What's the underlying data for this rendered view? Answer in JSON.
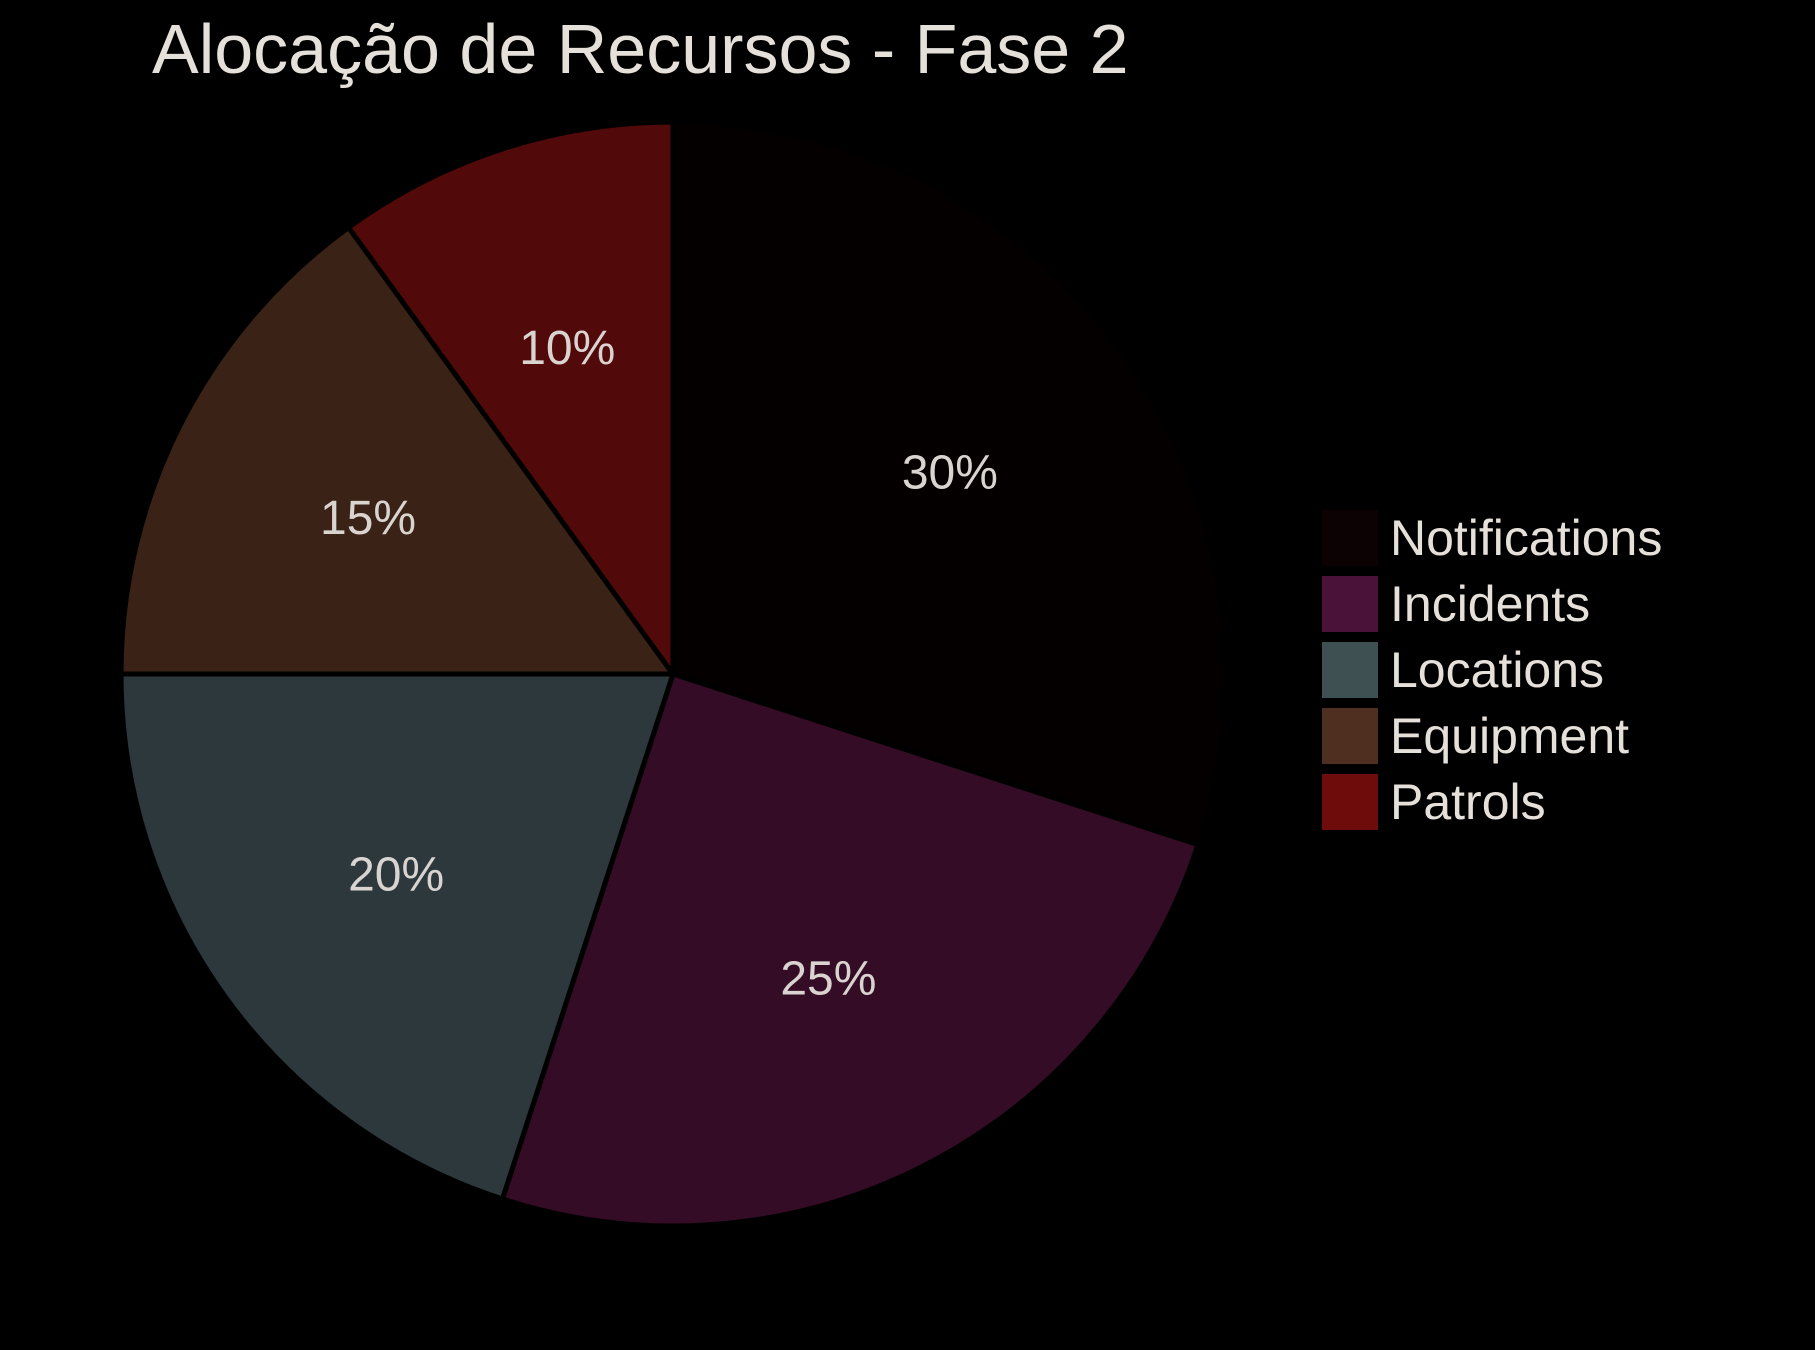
{
  "chart_data": {
    "type": "pie",
    "title": "Alocação de Recursos - Fase 2",
    "categories": [
      "Notifications",
      "Incidents",
      "Locations",
      "Equipment",
      "Patrols"
    ],
    "values": [
      30,
      25,
      20,
      15,
      10
    ],
    "labels": [
      "30%",
      "25%",
      "20%",
      "15%",
      "10%"
    ],
    "colors": [
      "#050000",
      "#350c25",
      "#2c383b",
      "#3a2216",
      "#520909"
    ],
    "legend_colors": [
      "#0d0203",
      "#4a1139",
      "#3f5053",
      "#4f2f1f",
      "#6e0b0b"
    ],
    "start_angle": "top, clockwise",
    "legend_position": "right"
  }
}
